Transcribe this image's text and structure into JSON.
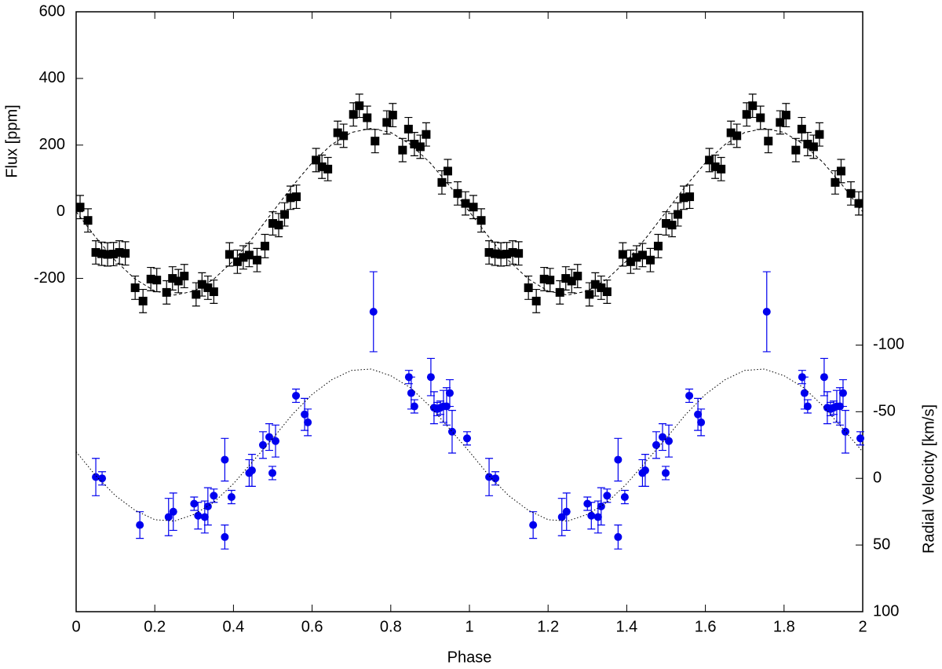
{
  "chart_data": {
    "type": "scatter",
    "xlabel": "Phase",
    "ylabel": "Flux [ppm]",
    "y2label": "Radial Velocity [km/s]",
    "xlim": [
      0,
      2
    ],
    "xticks": [
      0,
      0.2,
      0.4,
      0.6,
      0.8,
      1,
      1.2,
      1.4,
      1.6,
      1.8,
      2
    ],
    "ylim": [
      -1200,
      600
    ],
    "yticks": [
      -200,
      0,
      200,
      400,
      600
    ],
    "y2lim": [
      100,
      -350
    ],
    "y2ticks": [
      -100,
      -50,
      0,
      50,
      100
    ],
    "series": [
      {
        "marker": "square",
        "color": "#000000",
        "x": [
          0.01,
          0.03,
          0.05,
          0.065,
          0.08,
          0.095,
          0.11,
          0.125,
          0.15,
          0.17,
          0.19,
          0.205,
          0.23,
          0.245,
          0.26,
          0.275,
          0.305,
          0.32,
          0.335,
          0.35,
          0.39,
          0.41,
          0.425,
          0.44,
          0.46,
          0.48,
          0.5,
          0.515,
          0.53,
          0.545,
          0.56,
          0.61,
          0.625,
          0.64,
          0.665,
          0.68,
          0.705,
          0.72,
          0.74,
          0.76,
          0.79,
          0.805,
          0.83,
          0.845,
          0.86,
          0.875,
          0.89,
          0.93,
          0.945,
          0.97,
          0.99,
          1.01,
          1.03,
          1.05,
          1.065,
          1.08,
          1.095,
          1.11,
          1.125,
          1.15,
          1.17,
          1.19,
          1.205,
          1.23,
          1.245,
          1.26,
          1.275,
          1.305,
          1.32,
          1.335,
          1.35,
          1.39,
          1.41,
          1.425,
          1.44,
          1.46,
          1.48,
          1.5,
          1.515,
          1.53,
          1.545,
          1.56,
          1.61,
          1.625,
          1.64,
          1.665,
          1.68,
          1.705,
          1.72,
          1.74,
          1.76,
          1.79,
          1.805,
          1.83,
          1.845,
          1.86,
          1.875,
          1.89,
          1.93,
          1.945,
          1.97,
          1.99
        ],
        "values": [
          14,
          -26,
          -122,
          -126,
          -128,
          -127,
          -122,
          -125,
          -228,
          -268,
          -202,
          -205,
          -242,
          -200,
          -208,
          -193,
          -248,
          -218,
          -228,
          -240,
          -128,
          -150,
          -137,
          -130,
          -145,
          -103,
          -35,
          -40,
          -8,
          42,
          45,
          155,
          135,
          128,
          237,
          228,
          292,
          318,
          282,
          212,
          268,
          290,
          185,
          248,
          203,
          195,
          232,
          88,
          122,
          55,
          25,
          14,
          -26,
          -122,
          -126,
          -128,
          -127,
          -122,
          -125,
          -228,
          -268,
          -202,
          -205,
          -242,
          -200,
          -208,
          -193,
          -248,
          -218,
          -228,
          -240,
          -128,
          -150,
          -137,
          -130,
          -145,
          -103,
          -35,
          -40,
          -8,
          42,
          45,
          155,
          135,
          128,
          237,
          228,
          292,
          318,
          282,
          212,
          268,
          290,
          185,
          248,
          203,
          195,
          232,
          88,
          122,
          55,
          25
        ],
        "errors": [
          35,
          35,
          35,
          35,
          35,
          35,
          35,
          35,
          35,
          35,
          35,
          35,
          35,
          35,
          35,
          35,
          35,
          35,
          35,
          35,
          35,
          35,
          35,
          35,
          35,
          35,
          35,
          35,
          35,
          35,
          35,
          35,
          35,
          35,
          35,
          35,
          35,
          35,
          35,
          35,
          35,
          35,
          35,
          35,
          35,
          35,
          35,
          35,
          35,
          35,
          35,
          35,
          35,
          35,
          35,
          35,
          35,
          35,
          35,
          35,
          35,
          35,
          35,
          35,
          35,
          35,
          35,
          35,
          35,
          35,
          35,
          35,
          35,
          35,
          35,
          35,
          35,
          35,
          35,
          35,
          35,
          35,
          35,
          35,
          35,
          35,
          35,
          35,
          35,
          35,
          35,
          35,
          35,
          35,
          35,
          35,
          35,
          35,
          35,
          35,
          35,
          35
        ]
      },
      {
        "marker": "circle",
        "color": "#0000ee",
        "axis": "y2",
        "x": [
          0.05,
          0.066,
          0.162,
          0.235,
          0.247,
          0.3,
          0.31,
          0.327,
          0.335,
          0.35,
          0.378,
          0.378,
          0.395,
          0.44,
          0.447,
          0.475,
          0.491,
          0.499,
          0.507,
          0.559,
          0.581,
          0.589,
          0.756,
          0.846,
          0.852,
          0.86,
          0.902,
          0.91,
          0.918,
          0.926,
          0.934,
          0.942,
          0.95,
          0.956,
          0.994,
          1.05,
          1.066,
          1.162,
          1.235,
          1.247,
          1.3,
          1.31,
          1.327,
          1.335,
          1.35,
          1.378,
          1.378,
          1.395,
          1.44,
          1.447,
          1.475,
          1.491,
          1.499,
          1.507,
          1.559,
          1.581,
          1.589,
          1.756,
          1.846,
          1.852,
          1.86,
          1.902,
          1.91,
          1.918,
          1.926,
          1.934,
          1.942,
          1.95,
          1.956,
          1.994
        ],
        "values": [
          -1,
          0,
          35,
          29,
          25,
          19,
          28,
          29,
          21,
          13,
          -14,
          44,
          14,
          -4,
          -6,
          -25,
          -31,
          -4,
          -28,
          -62,
          -48,
          -42,
          -125,
          -76,
          -64,
          -54,
          -76,
          -53,
          -52,
          -53,
          -54,
          -54,
          -64,
          -35,
          -30,
          -1,
          0,
          35,
          29,
          25,
          19,
          28,
          29,
          21,
          13,
          -14,
          44,
          14,
          -4,
          -6,
          -25,
          -31,
          -4,
          -28,
          -62,
          -48,
          -42,
          -125,
          -76,
          -64,
          -54,
          -76,
          -53,
          -52,
          -53,
          -54,
          -54,
          -64,
          -35,
          -30
        ],
        "errors": [
          14,
          5,
          10,
          14,
          14,
          5,
          10,
          12,
          14,
          5,
          16,
          9,
          5,
          10,
          12,
          10,
          10,
          5,
          12,
          5,
          12,
          10,
          30,
          5,
          12,
          5,
          14,
          12,
          5,
          5,
          12,
          14,
          10,
          16,
          5,
          14,
          5,
          10,
          14,
          14,
          5,
          10,
          12,
          14,
          5,
          16,
          9,
          5,
          10,
          12,
          10,
          10,
          5,
          12,
          5,
          12,
          10,
          30,
          5,
          12,
          5,
          14,
          12,
          5,
          5,
          12,
          14,
          10,
          16,
          5
        ]
      },
      {
        "line": "dashed",
        "color": "#000000",
        "x": [
          0,
          0.05,
          0.1,
          0.15,
          0.2,
          0.25,
          0.3,
          0.35,
          0.4,
          0.45,
          0.5,
          0.55,
          0.6,
          0.65,
          0.7,
          0.75,
          0.8,
          0.85,
          0.9,
          0.95,
          1,
          1.05,
          1.1,
          1.15,
          1.2,
          1.25,
          1.3,
          1.35,
          1.4,
          1.45,
          1.5,
          1.55,
          1.6,
          1.65,
          1.7,
          1.75,
          1.8,
          1.85,
          1.9,
          1.95,
          2
        ],
        "values": [
          0,
          -77,
          -147,
          -202,
          -238,
          -250,
          -238,
          -202,
          -147,
          -77,
          0,
          77,
          147,
          202,
          238,
          250,
          238,
          202,
          147,
          77,
          0,
          -77,
          -147,
          -202,
          -238,
          -250,
          -238,
          -202,
          -147,
          -77,
          0,
          77,
          147,
          202,
          238,
          250,
          238,
          202,
          147,
          77,
          0
        ]
      },
      {
        "line": "dotted",
        "color": "#000000",
        "axis": "y2",
        "x": [
          0,
          0.05,
          0.1,
          0.15,
          0.2,
          0.25,
          0.3,
          0.35,
          0.4,
          0.45,
          0.5,
          0.55,
          0.6,
          0.65,
          0.7,
          0.75,
          0.8,
          0.85,
          0.9,
          0.95,
          1,
          1.05,
          1.1,
          1.15,
          1.2,
          1.25,
          1.3,
          1.35,
          1.4,
          1.45,
          1.5,
          1.55,
          1.6,
          1.65,
          1.7,
          1.75,
          1.8,
          1.85,
          1.9,
          1.95,
          2
        ],
        "values": [
          -20,
          -2,
          13,
          24,
          31,
          32,
          27,
          18,
          4,
          -13,
          -30,
          -48,
          -63,
          -74,
          -81,
          -82,
          -77,
          -68,
          -54,
          -37,
          -20,
          -2,
          13,
          24,
          31,
          32,
          27,
          18,
          4,
          -13,
          -30,
          -48,
          -63,
          -74,
          -81,
          -82,
          -77,
          -68,
          -54,
          -37,
          -20
        ]
      }
    ]
  }
}
